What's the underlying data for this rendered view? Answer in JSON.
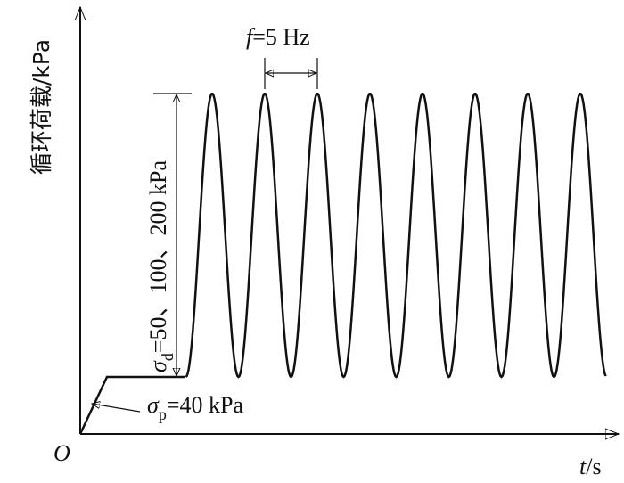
{
  "axes": {
    "y_label": "循环荷载/kPa",
    "origin": "O",
    "x_label_symbol": "t",
    "x_label_unit": "/s"
  },
  "frequency": {
    "symbol": "f",
    "text": "=5 Hz"
  },
  "deviator_stress": {
    "symbol": "σ",
    "subscript": "d",
    "text": "=50、100、200 kPa"
  },
  "confining_stress": {
    "symbol": "σ",
    "subscript": "p",
    "text": "=40 kPa"
  }
}
